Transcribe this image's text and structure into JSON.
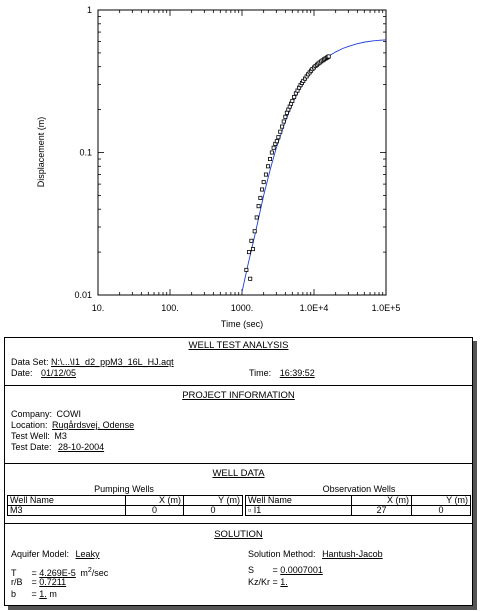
{
  "chart_data": {
    "type": "scatter",
    "xscale": "log",
    "yscale": "log",
    "xlim": [
      10,
      100000
    ],
    "ylim": [
      0.01,
      1
    ],
    "xlabel": "Time (sec)",
    "ylabel": "Displacement (m)",
    "xticks": [
      {
        "value": 10,
        "label": "10."
      },
      {
        "value": 100,
        "label": "100."
      },
      {
        "value": 1000,
        "label": "1000."
      },
      {
        "value": 10000,
        "label": "1.0E+4"
      },
      {
        "value": 100000,
        "label": "1.0E+5"
      }
    ],
    "yticks": [
      {
        "value": 0.01,
        "label": "0.01"
      },
      {
        "value": 0.1,
        "label": "0.1"
      },
      {
        "value": 1,
        "label": "1"
      }
    ],
    "observations": {
      "x": [
        1150,
        1250,
        1300,
        1350,
        1420,
        1500,
        1600,
        1700,
        1800,
        1900,
        2000,
        2150,
        2300,
        2450,
        2600,
        2750,
        2900,
        3050,
        3200,
        3400,
        3600,
        3800,
        4000,
        4200,
        4400,
        4600,
        4800,
        5000,
        5300,
        5600,
        5900,
        6200,
        6500,
        6800,
        7100,
        7500,
        7900,
        8300,
        8700,
        9100,
        9500,
        10000,
        10500,
        11000,
        11500,
        12000,
        12600,
        13200,
        13800,
        14400,
        15000,
        15500,
        16000
      ],
      "y": [
        0.015,
        0.02,
        0.013,
        0.024,
        0.021,
        0.028,
        0.035,
        0.042,
        0.048,
        0.055,
        0.062,
        0.07,
        0.08,
        0.09,
        0.1,
        0.108,
        0.115,
        0.12,
        0.128,
        0.14,
        0.152,
        0.165,
        0.178,
        0.19,
        0.2,
        0.21,
        0.22,
        0.23,
        0.245,
        0.26,
        0.272,
        0.285,
        0.297,
        0.308,
        0.318,
        0.33,
        0.342,
        0.354,
        0.365,
        0.375,
        0.385,
        0.395,
        0.405,
        0.413,
        0.421,
        0.428,
        0.436,
        0.443,
        0.45,
        0.456,
        0.462,
        0.467,
        0.472
      ]
    },
    "fit_curve": {
      "x": [
        1000,
        1200,
        1500,
        2000,
        2500,
        3000,
        4000,
        5000,
        6000,
        8000,
        10000,
        13000,
        16000,
        20000,
        25000,
        30000,
        40000,
        50000,
        65000,
        80000,
        100000
      ],
      "y": [
        0.0105,
        0.016,
        0.026,
        0.05,
        0.078,
        0.108,
        0.165,
        0.22,
        0.265,
        0.335,
        0.39,
        0.44,
        0.475,
        0.508,
        0.537,
        0.555,
        0.58,
        0.595,
        0.607,
        0.613,
        0.617
      ]
    },
    "colors": {
      "curve": "#1f3fd6",
      "points": "#000000"
    }
  },
  "report": {
    "header": {
      "title": "WELL TEST ANALYSIS",
      "data_set_label": "Data Set:",
      "data_set_value": "N:\\...\\I1_d2_ppM3_16L_HJ.aqt",
      "date_label": "Date:",
      "date_value": "01/12/05",
      "time_label": "Time:",
      "time_value": "16:39:52"
    },
    "project": {
      "title": "PROJECT INFORMATION",
      "company_label": "Company:",
      "company_value": "COWI",
      "location_label": "Location:",
      "location_value": "Rugårdsvej, Odense",
      "test_well_label": "Test Well:",
      "test_well_value": "M3",
      "test_date_label": "Test Date:",
      "test_date_value": "28-10-2004"
    },
    "well_data": {
      "title": "WELL DATA",
      "pumping_title": "Pumping Wells",
      "observation_title": "Observation Wells",
      "col_name": "Well Name",
      "col_x": "X (m)",
      "col_y": "Y (m)",
      "pumping_name": "M3",
      "pumping_x": "0",
      "pumping_y": "0",
      "obs_symbol": "▫",
      "obs_name": "I1",
      "obs_x": "27",
      "obs_y": "0"
    },
    "solution": {
      "title": "SOLUTION",
      "aquifer_label": "Aquifer Model:",
      "aquifer_value": "Leaky",
      "method_label": "Solution Method:",
      "method_value": "Hantush-Jacob",
      "T_label": "T",
      "T_value": "4.269E-5",
      "T_unit": "m",
      "T_unit_sup": "2",
      "T_unit_tail": "/sec",
      "S_label": "S",
      "S_value": "0.0007001",
      "rB_label": "r/B",
      "rB_value": "0.7211",
      "kz_label": "Kz/Kr",
      "kz_value": "1.",
      "b_label": "b",
      "b_value": "1.",
      "b_unit": "m"
    }
  }
}
